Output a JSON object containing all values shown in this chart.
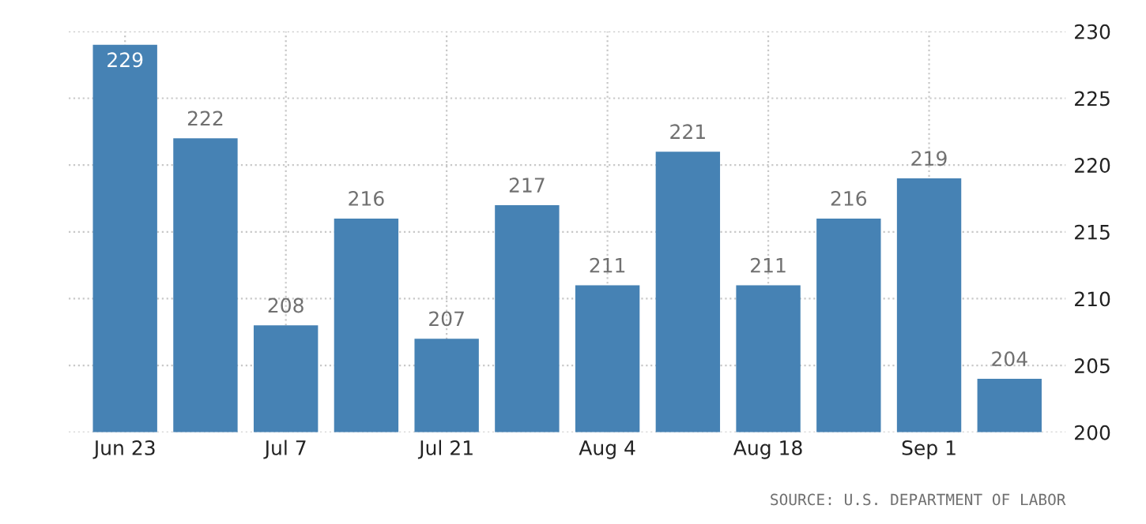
{
  "chart_data": {
    "type": "bar",
    "categories": [
      "Jun 23",
      null,
      "Jul 7",
      null,
      "Jul 21",
      null,
      "Aug 4",
      null,
      "Aug 18",
      null,
      "Sep 1",
      null
    ],
    "values": [
      229,
      222,
      208,
      216,
      207,
      217,
      211,
      221,
      211,
      216,
      219,
      204
    ],
    "color": "#4682b4",
    "ylim": [
      200,
      230
    ],
    "yticks": [
      200,
      205,
      210,
      215,
      220,
      225,
      230
    ],
    "grid": true,
    "data_labels": true,
    "annotations": [
      "SOURCE: U.S. DEPARTMENT OF LABOR"
    ]
  }
}
